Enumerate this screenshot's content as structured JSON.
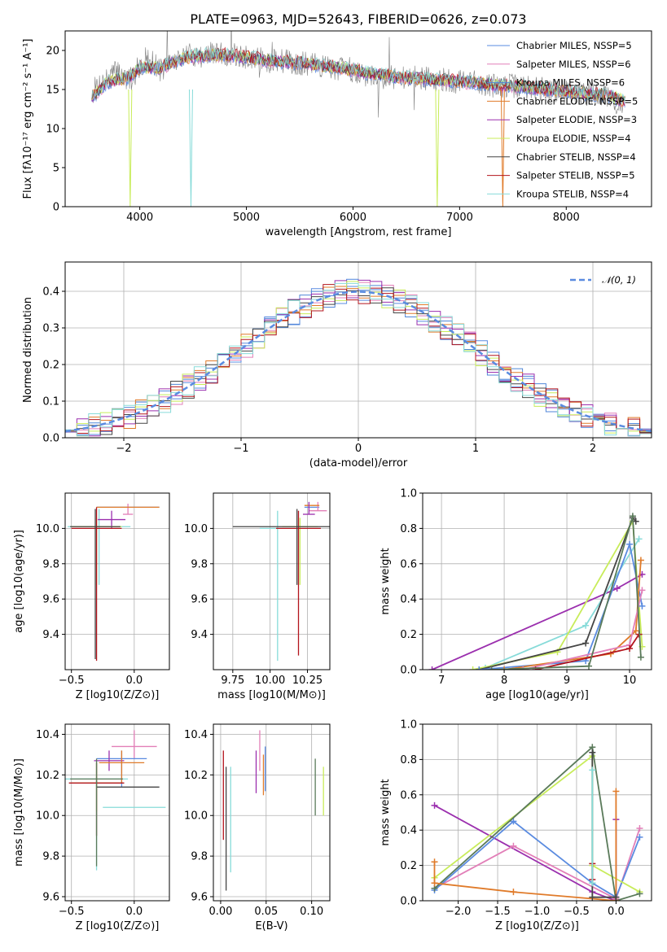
{
  "figure_title": "PLATE=0963, MJD=52643, FIBERID=0626, z=0.073",
  "model_colors": [
    "#5a8be0",
    "#e27fb8",
    "#4f86d8",
    "#e07b2a",
    "#9b2fae",
    "#c8ec5a",
    "#454545",
    "#b3141c",
    "#87dbd9"
  ],
  "chart_data": [
    {
      "id": "spectrum",
      "type": "line",
      "xlabel": "wavelength [Angstrom, rest frame]",
      "ylabel": "Flux [fλ10⁻¹⁷ erg cm⁻² s⁻¹ A⁻¹]",
      "xlim": [
        3300,
        8800
      ],
      "ylim": [
        0,
        22.5
      ],
      "xticks": [
        "4000",
        "5000",
        "6000",
        "7000",
        "8000"
      ],
      "yticks": [
        "0",
        "5",
        "10",
        "15",
        "20"
      ],
      "grid": false,
      "legend_position": "upper-right",
      "legend": [
        {
          "label": "Chabrier MILES, NSSP=5",
          "color": "#5a8be0"
        },
        {
          "label": "Salpeter MILES, NSSP=6",
          "color": "#e27fb8"
        },
        {
          "label": "Kroupa MILES, NSSP=6",
          "color": "#4f86d8"
        },
        {
          "label": "Chabrier ELODIE, NSSP=5",
          "color": "#e07b2a"
        },
        {
          "label": "Salpeter ELODIE, NSSP=3",
          "color": "#9b2fae"
        },
        {
          "label": "Kroupa ELODIE, NSSP=4",
          "color": "#c8ec5a"
        },
        {
          "label": "Chabrier STELIB, NSSP=4",
          "color": "#454545"
        },
        {
          "label": "Salpeter STELIB, NSSP=5",
          "color": "#b3141c"
        },
        {
          "label": "Kroupa STELIB, NSSP=4",
          "color": "#87dbd9"
        }
      ],
      "data_series": {
        "name": "data",
        "color": "#7f7f7f",
        "x": [
          3550,
          3600,
          3700,
          3800,
          3900,
          4000,
          4100,
          4200,
          4300,
          4400,
          4500,
          4600,
          4700,
          4800,
          4900,
          5000,
          5100,
          5200,
          5300,
          5400,
          5500,
          5600,
          5700,
          5800,
          5900,
          6000,
          6100,
          6200,
          6300,
          6400,
          6500,
          6600,
          6700,
          6800,
          6900,
          7000,
          7100,
          7200,
          7300,
          7400,
          7500,
          7600,
          7700,
          7800,
          7900,
          8000,
          8100,
          8200,
          8300,
          8400,
          8500
        ],
        "y": [
          14.5,
          15.5,
          16.5,
          17.5,
          16.0,
          18.0,
          18.8,
          17.5,
          18.5,
          19.2,
          19.5,
          19.3,
          19.6,
          19.5,
          19.3,
          19.0,
          19.1,
          18.5,
          18.7,
          18.6,
          18.3,
          18.2,
          18.0,
          17.8,
          17.7,
          17.5,
          17.0,
          16.8,
          16.6,
          16.5,
          16.3,
          16.5,
          16.4,
          16.3,
          16.1,
          16.0,
          16.0,
          15.8,
          15.5,
          15.4,
          15.5,
          15.3,
          15.2,
          15.0,
          14.8,
          14.8,
          14.6,
          14.5,
          14.3,
          14.2,
          12.5
        ]
      },
      "model_mean": {
        "x": [
          3550,
          3700,
          3900,
          4000,
          4200,
          4400,
          4600,
          4800,
          5000,
          5200,
          5400,
          5600,
          5800,
          6000,
          6200,
          6400,
          6600,
          6800,
          7000,
          7200,
          7400,
          7600,
          7800,
          8000,
          8200,
          8400,
          8550
        ],
        "y": [
          14.0,
          16.0,
          16.5,
          17.8,
          17.8,
          19.0,
          19.4,
          19.4,
          19.1,
          18.7,
          18.5,
          18.2,
          17.9,
          17.5,
          17.0,
          16.6,
          16.4,
          16.2,
          16.0,
          15.8,
          15.5,
          15.3,
          15.0,
          14.8,
          14.5,
          14.2,
          13.5
        ]
      }
    },
    {
      "id": "residuals",
      "type": "histogram",
      "xlabel": "(data-model)/error",
      "ylabel": "Normed distribution",
      "xlim": [
        -2.5,
        2.5
      ],
      "ylim": [
        0,
        0.48
      ],
      "xticks": [
        "−2",
        "−1",
        "0",
        "1",
        "2"
      ],
      "yticks": [
        "0.0",
        "0.1",
        "0.2",
        "0.3",
        "0.4"
      ],
      "grid": true,
      "legend": [
        {
          "label": "𝒩(0, 1)",
          "color": "#5a8be0",
          "style": "dashed"
        }
      ],
      "legend_position": "upper-right",
      "bin_width": 0.1,
      "gaussian": {
        "mean": 0,
        "sigma": 1
      }
    },
    {
      "id": "age-vs-Z",
      "type": "errorbar",
      "xlabel": "Z [log10(Z/Z⊙)]",
      "ylabel": "age  [log10(age/yr)]",
      "xlim": [
        -0.55,
        0.28
      ],
      "ylim": [
        9.2,
        10.2
      ],
      "xticks": [
        "−0.5",
        "0.0"
      ],
      "yticks": [
        "9.4",
        "9.6",
        "9.8",
        "10.0"
      ],
      "grid": true,
      "points": [
        {
          "x": -0.28,
          "y": 10.01,
          "xerr": 0.25,
          "yerr_lo": 0.33,
          "yerr_hi": 0.1,
          "color": "#87dbd9"
        },
        {
          "x": -0.05,
          "y": 10.12,
          "xerr": 0.25,
          "yerr_lo": 0.0,
          "yerr_hi": 0.0,
          "color": "#5a8be0"
        },
        {
          "x": -0.18,
          "y": 10.05,
          "xerr": 0.11,
          "yerr_lo": 0.05,
          "yerr_hi": 0.05,
          "color": "#9b2fae"
        },
        {
          "x": -0.05,
          "y": 10.08,
          "xerr": 0.04,
          "yerr_lo": 0.0,
          "yerr_hi": 0.06,
          "color": "#e27fb8"
        },
        {
          "x": -0.05,
          "y": 10.12,
          "xerr": 0.25,
          "yerr_lo": 0.0,
          "yerr_hi": 0.0,
          "color": "#e07b2a"
        },
        {
          "x": -0.3,
          "y": 10.01,
          "xerr": 0.2,
          "yerr_lo": 0.33,
          "yerr_hi": 0.05,
          "color": "#c8ec5a"
        },
        {
          "x": -0.3,
          "y": 10.0,
          "xerr": 0.2,
          "yerr_lo": 0.75,
          "yerr_hi": 0.12,
          "color": "#b3141c"
        },
        {
          "x": -0.31,
          "y": 10.01,
          "xerr": 0.2,
          "yerr_lo": 0.75,
          "yerr_hi": 0.1,
          "color": "#454545"
        }
      ]
    },
    {
      "id": "age-vs-mass",
      "type": "errorbar",
      "xlabel": "mass [log10(M/M⊙)]",
      "ylabel": "",
      "xlim": [
        9.62,
        10.4
      ],
      "ylim": [
        9.2,
        10.2
      ],
      "xticks": [
        "9.75",
        "10.00",
        "10.25"
      ],
      "yticks": [
        "9.4",
        "9.6",
        "9.8",
        "10.0"
      ],
      "grid": true,
      "points": [
        {
          "x": 10.05,
          "y": 10.0,
          "xerr": 0.12,
          "yerr_lo": 0.75,
          "yerr_hi": 0.1,
          "color": "#87dbd9"
        },
        {
          "x": 10.28,
          "y": 10.12,
          "xerr": 0.05,
          "yerr_lo": 0.0,
          "yerr_hi": 0.0,
          "color": "#5a8be0"
        },
        {
          "x": 10.32,
          "y": 10.1,
          "xerr": 0.06,
          "yerr_lo": 0.0,
          "yerr_hi": 0.05,
          "color": "#e27fb8"
        },
        {
          "x": 10.28,
          "y": 10.13,
          "xerr": 0.05,
          "yerr_lo": 0.0,
          "yerr_hi": 0.0,
          "color": "#e07b2a"
        },
        {
          "x": 10.26,
          "y": 10.08,
          "xerr": 0.04,
          "yerr_lo": 0.0,
          "yerr_hi": 0.07,
          "color": "#9b2fae"
        },
        {
          "x": 10.2,
          "y": 10.01,
          "xerr": 0.12,
          "yerr_lo": 0.33,
          "yerr_hi": 0.05,
          "color": "#c8ec5a"
        },
        {
          "x": 10.19,
          "y": 10.0,
          "xerr": 0.15,
          "yerr_lo": 0.72,
          "yerr_hi": 0.1,
          "color": "#b3141c"
        },
        {
          "x": 10.18,
          "y": 10.01,
          "xerr": 0.43,
          "yerr_lo": 0.33,
          "yerr_hi": 0.1,
          "color": "#454545"
        }
      ]
    },
    {
      "id": "weight-vs-age",
      "type": "line",
      "xlabel": "age  [log10(age/yr)]",
      "ylabel": "mass weight",
      "xlim": [
        6.7,
        10.35
      ],
      "ylim": [
        0,
        1.0
      ],
      "xticks": [
        "7",
        "8",
        "9",
        "10"
      ],
      "yticks": [
        "0.0",
        "0.2",
        "0.4",
        "0.6",
        "0.8",
        "1.0"
      ],
      "grid": true,
      "series": [
        {
          "color": "#9b2fae",
          "x": [
            6.85,
            9.8,
            10.2
          ],
          "y": [
            0.0,
            0.46,
            0.54
          ]
        },
        {
          "color": "#87dbd9",
          "x": [
            7.7,
            9.3,
            10.15
          ],
          "y": [
            0.01,
            0.25,
            0.74
          ]
        },
        {
          "color": "#c8ec5a",
          "x": [
            7.5,
            8.85,
            10.05,
            10.2
          ],
          "y": [
            0.0,
            0.1,
            0.84,
            0.13
          ]
        },
        {
          "color": "#454545",
          "x": [
            7.6,
            9.3,
            10.05,
            10.1
          ],
          "y": [
            0.0,
            0.15,
            0.86,
            0.84
          ]
        },
        {
          "color": "#5a8be0",
          "x": [
            7.6,
            9.3,
            10.0,
            10.2
          ],
          "y": [
            0.0,
            0.05,
            0.71,
            0.36
          ]
        },
        {
          "color": "#e07b2a",
          "x": [
            8.0,
            9.7,
            10.1,
            10.18
          ],
          "y": [
            0.0,
            0.09,
            0.22,
            0.62
          ]
        },
        {
          "color": "#e27fb8",
          "x": [
            8.3,
            10.0,
            10.2
          ],
          "y": [
            0.0,
            0.14,
            0.45
          ]
        },
        {
          "color": "#b3141c",
          "x": [
            8.5,
            10.0,
            10.15
          ],
          "y": [
            0.0,
            0.12,
            0.2
          ]
        },
        {
          "color": "#5a7a5a",
          "x": [
            7.8,
            9.35,
            10.05,
            10.18
          ],
          "y": [
            0.0,
            0.02,
            0.87,
            0.07
          ]
        }
      ]
    },
    {
      "id": "mass-vs-Z",
      "type": "errorbar",
      "xlabel": "Z [log10(Z/Z⊙)]",
      "ylabel": "mass [log10(M/M⊙)]",
      "xlim": [
        -0.55,
        0.28
      ],
      "ylim": [
        9.58,
        10.45
      ],
      "xticks": [
        "−0.5",
        "0.0"
      ],
      "yticks": [
        "9.6",
        "9.8",
        "10.0",
        "10.2",
        "10.4"
      ],
      "grid": true,
      "points": [
        {
          "x": -0.3,
          "y": 10.18,
          "xerr": 0.25,
          "yerr_lo": 0.45,
          "yerr_hi": 0.09,
          "color": "#87dbd9"
        },
        {
          "x": 0.0,
          "y": 10.34,
          "xerr": 0.18,
          "yerr_lo": 0.06,
          "yerr_hi": 0.08,
          "color": "#e27fb8"
        },
        {
          "x": -0.1,
          "y": 10.28,
          "xerr": 0.2,
          "yerr_lo": 0.14,
          "yerr_hi": 0.04,
          "color": "#5a8be0"
        },
        {
          "x": -0.2,
          "y": 10.27,
          "xerr": 0.12,
          "yerr_lo": 0.05,
          "yerr_hi": 0.05,
          "color": "#9b2fae"
        },
        {
          "x": -0.1,
          "y": 10.26,
          "xerr": 0.18,
          "yerr_lo": 0.1,
          "yerr_hi": 0.06,
          "color": "#e07b2a"
        },
        {
          "x": 0.0,
          "y": 10.04,
          "xerr": 0.25,
          "yerr_lo": 0.0,
          "yerr_hi": 0.0,
          "color": "#87dbd9"
        },
        {
          "x": -0.3,
          "y": 10.16,
          "xerr": 0.2,
          "yerr_lo": 0.14,
          "yerr_hi": 0.1,
          "color": "#c8ec5a"
        },
        {
          "x": -0.3,
          "y": 10.16,
          "xerr": 0.22,
          "yerr_lo": 0.26,
          "yerr_hi": 0.1,
          "color": "#b3141c"
        },
        {
          "x": -0.05,
          "y": 10.14,
          "xerr": 0.25,
          "yerr_lo": 0.0,
          "yerr_hi": 0.0,
          "color": "#454545"
        },
        {
          "x": -0.3,
          "y": 10.18,
          "xerr": 0.21,
          "yerr_lo": 0.43,
          "yerr_hi": 0.1,
          "color": "#5a7a5a"
        }
      ]
    },
    {
      "id": "mass-vs-ebv",
      "type": "errorbar",
      "xlabel": "E(B-V)",
      "ylabel": "",
      "xlim": [
        -0.008,
        0.12
      ],
      "ylim": [
        9.58,
        10.45
      ],
      "xticks": [
        "0.00",
        "0.05",
        "0.10"
      ],
      "yticks": [
        "9.6",
        "9.8",
        "10.0",
        "10.2",
        "10.4"
      ],
      "grid": true,
      "points": [
        {
          "x": 0.003,
          "y": 10.15,
          "yerr_lo": 0.27,
          "yerr_hi": 0.17,
          "color": "#b3141c"
        },
        {
          "x": 0.006,
          "y": 10.1,
          "yerr_lo": 0.47,
          "yerr_hi": 0.14,
          "color": "#454545"
        },
        {
          "x": 0.011,
          "y": 10.05,
          "yerr_lo": 0.33,
          "yerr_hi": 0.19,
          "color": "#87dbd9"
        },
        {
          "x": 0.039,
          "y": 10.22,
          "yerr_lo": 0.11,
          "yerr_hi": 0.1,
          "color": "#9b2fae"
        },
        {
          "x": 0.043,
          "y": 10.3,
          "yerr_lo": 0.08,
          "yerr_hi": 0.12,
          "color": "#e27fb8"
        },
        {
          "x": 0.047,
          "y": 10.2,
          "yerr_lo": 0.1,
          "yerr_hi": 0.1,
          "color": "#e07b2a"
        },
        {
          "x": 0.049,
          "y": 10.22,
          "yerr_lo": 0.1,
          "yerr_hi": 0.12,
          "color": "#5a8be0"
        },
        {
          "x": 0.104,
          "y": 10.14,
          "yerr_lo": 0.14,
          "yerr_hi": 0.14,
          "color": "#5a7a5a"
        },
        {
          "x": 0.113,
          "y": 10.12,
          "yerr_lo": 0.12,
          "yerr_hi": 0.12,
          "color": "#c8ec5a"
        }
      ]
    },
    {
      "id": "weight-vs-Z",
      "type": "line",
      "xlabel": "Z [log10(Z/Z⊙)]",
      "ylabel": "mass weight",
      "xlim": [
        -2.45,
        0.45
      ],
      "ylim": [
        0,
        1.0
      ],
      "xticks": [
        "−2.0",
        "−1.5",
        "−1.0",
        "−0.5",
        "0.0"
      ],
      "yticks": [
        "0.0",
        "0.2",
        "0.4",
        "0.6",
        "0.8",
        "1.0"
      ],
      "grid": true,
      "series": [
        {
          "color": "#9b2fae",
          "x": [
            -2.3,
            -0.3,
            0.0,
            0.0
          ],
          "y": [
            0.54,
            0.05,
            0.0,
            0.46
          ]
        },
        {
          "color": "#e27fb8",
          "x": [
            -2.3,
            -1.3,
            0.0,
            0.3
          ],
          "y": [
            0.07,
            0.31,
            0.01,
            0.41
          ]
        },
        {
          "color": "#5a8be0",
          "x": [
            -2.3,
            -1.3,
            -0.3,
            0.0,
            0.3
          ],
          "y": [
            0.06,
            0.45,
            0.1,
            0.02,
            0.36
          ]
        },
        {
          "color": "#c8ec5a",
          "x": [
            -2.3,
            -0.3,
            -0.3,
            0.3
          ],
          "y": [
            0.13,
            0.82,
            0.2,
            0.05
          ]
        },
        {
          "color": "#5a7a5a",
          "x": [
            -2.3,
            -0.3,
            0.0,
            0.3
          ],
          "y": [
            0.07,
            0.87,
            0.0,
            0.04
          ]
        },
        {
          "color": "#e07b2a",
          "x": [
            -2.3,
            -2.3,
            -1.3,
            0.0,
            0.0
          ],
          "y": [
            0.22,
            0.1,
            0.05,
            0.0,
            0.62
          ]
        },
        {
          "color": "#454545",
          "x": [
            -0.3,
            -0.3,
            0.0
          ],
          "y": [
            0.84,
            0.02,
            0.02
          ]
        },
        {
          "color": "#b3141c",
          "x": [
            -0.3,
            -0.3
          ],
          "y": [
            0.21,
            0.12
          ]
        },
        {
          "color": "#87dbd9",
          "x": [
            -0.3,
            -0.3
          ],
          "y": [
            0.74,
            0.1
          ]
        }
      ]
    }
  ]
}
